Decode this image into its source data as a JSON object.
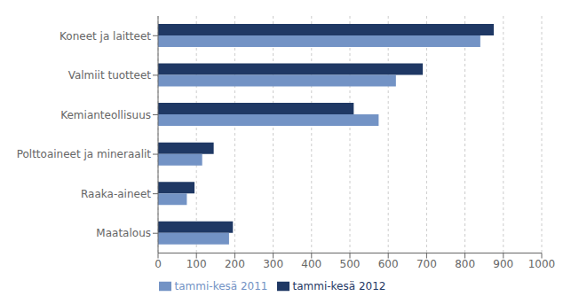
{
  "chart_data": {
    "type": "bar",
    "orientation": "horizontal",
    "categories": [
      "Koneet ja laitteet",
      "Valmiit tuotteet",
      "Kemianteollisuus",
      "Polttoaineet ja mineraalit",
      "Raaka-aineet",
      "Maatalous"
    ],
    "series": [
      {
        "name": "tammi-kesä 2012",
        "color": "#1F3864",
        "values": [
          875,
          690,
          510,
          145,
          95,
          195
        ]
      },
      {
        "name": "tammi-kesä 2011",
        "color": "#7393C5",
        "values": [
          840,
          620,
          575,
          115,
          75,
          185
        ]
      }
    ],
    "xlim": [
      0,
      1000
    ],
    "xticks": [
      0,
      100,
      200,
      300,
      400,
      500,
      600,
      700,
      800,
      900,
      1000
    ],
    "grid": true,
    "legend": "bottom"
  }
}
